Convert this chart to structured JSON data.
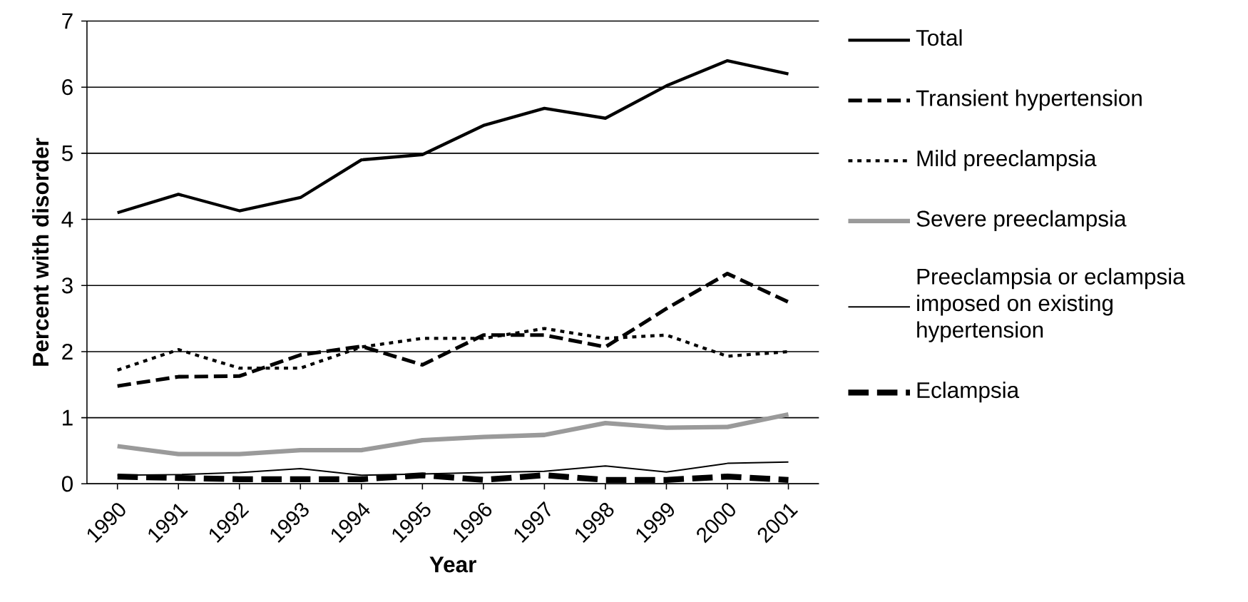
{
  "chart_data": {
    "type": "line",
    "xlabel": "Year",
    "ylabel": "Percent with disorder",
    "categories": [
      "1990",
      "1991",
      "1992",
      "1993",
      "1994",
      "1995",
      "1996",
      "1997",
      "1998",
      "1999",
      "2000",
      "2001"
    ],
    "ylim": [
      0,
      7
    ],
    "yticks": [
      0,
      1,
      2,
      3,
      4,
      5,
      6,
      7
    ],
    "grid": "y",
    "legend": "right",
    "series": [
      {
        "name": "Total",
        "color": "#000000",
        "line_style": "solid",
        "values": [
          4.1,
          4.38,
          4.13,
          4.33,
          4.9,
          4.98,
          5.42,
          5.68,
          5.53,
          6.02,
          6.4,
          6.2
        ]
      },
      {
        "name": "Transient hypertension",
        "color": "#000000",
        "line_style": "dashed",
        "values": [
          1.48,
          1.62,
          1.63,
          1.95,
          2.08,
          1.8,
          2.25,
          2.25,
          2.07,
          2.65,
          3.18,
          2.75
        ]
      },
      {
        "name": "Mild preeclampsia",
        "color": "#000000",
        "line_style": "dotted",
        "values": [
          1.72,
          2.03,
          1.75,
          1.75,
          2.07,
          2.2,
          2.2,
          2.35,
          2.2,
          2.25,
          1.93,
          2.0
        ]
      },
      {
        "name": "Severe preeclampsia",
        "color": "#9a9a9a",
        "line_style": "solid",
        "values": [
          0.57,
          0.45,
          0.45,
          0.51,
          0.51,
          0.66,
          0.71,
          0.74,
          0.92,
          0.85,
          0.86,
          1.05
        ]
      },
      {
        "name": "Preeclampsia or eclampsia imposed on existing hypertension",
        "color": "#000000",
        "line_style": "solid",
        "values": [
          0.13,
          0.14,
          0.17,
          0.23,
          0.13,
          0.15,
          0.17,
          0.19,
          0.27,
          0.18,
          0.31,
          0.33
        ]
      },
      {
        "name": "Eclampsia",
        "color": "#000000",
        "line_style": "dashed",
        "values": [
          0.11,
          0.09,
          0.07,
          0.07,
          0.07,
          0.13,
          0.06,
          0.13,
          0.06,
          0.06,
          0.11,
          0.06
        ]
      }
    ]
  }
}
